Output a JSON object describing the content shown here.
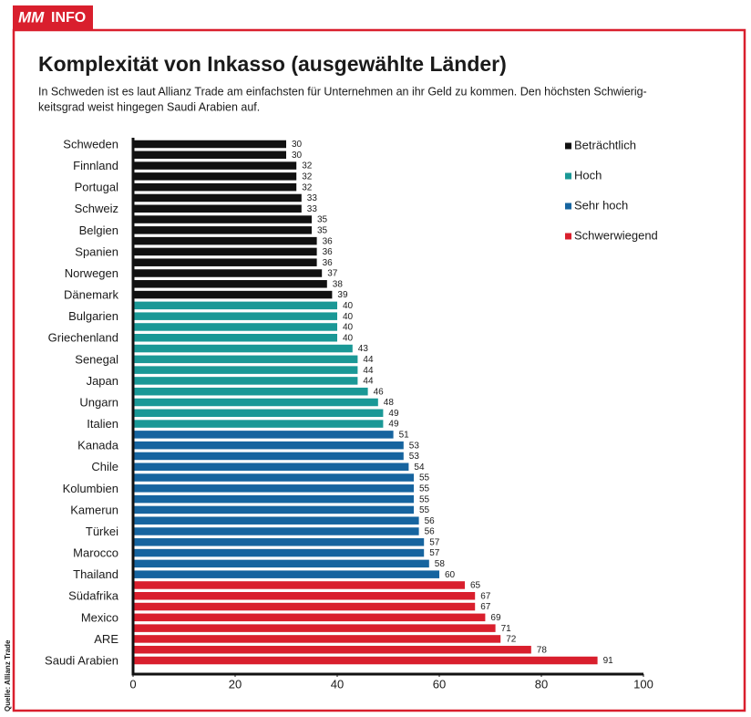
{
  "header": {
    "logo": "MM",
    "label": "INFO"
  },
  "chart_data": {
    "type": "bar",
    "orientation": "horizontal",
    "title": "Komplexität von Inkasso (ausgewählte Länder)",
    "subtitle": [
      "In Schweden ist es laut Allianz Trade am einfachsten für Unternehmen an ihr Geld zu kommen. Den höchsten Schwierig-",
      "keitsgrad weist hingegen Saudi Arabien auf."
    ],
    "source": "Quelle: Allianz Trade",
    "categories": [
      "Schweden",
      null,
      "Finnland",
      null,
      "Portugal",
      null,
      "Schweiz",
      null,
      "Belgien",
      null,
      "Spanien",
      null,
      "Norwegen",
      null,
      "Dänemark",
      null,
      "Bulgarien",
      null,
      "Griechenland",
      null,
      "Senegal",
      null,
      "Japan",
      null,
      "Ungarn",
      null,
      "Italien",
      null,
      "Kanada",
      null,
      "Chile",
      null,
      "Kolumbien",
      null,
      "Kamerun",
      null,
      "Türkei",
      null,
      "Marocco",
      null,
      "Thailand",
      null,
      "Südafrika",
      null,
      "Mexico",
      null,
      "ARE",
      null,
      "Saudi Arabien"
    ],
    "series": [
      {
        "name": "Beträchtlich",
        "color": "#111111",
        "values": [
          30,
          30,
          32,
          32,
          32,
          33,
          33,
          35,
          35,
          36,
          36,
          36,
          37,
          38,
          39,
          null,
          null,
          null,
          null,
          null,
          null,
          null,
          null,
          null,
          null,
          null,
          null,
          null,
          null,
          null,
          null,
          null,
          null,
          null,
          null,
          null,
          null,
          null,
          null,
          null,
          null,
          null,
          null,
          null,
          null,
          null,
          null,
          null,
          null
        ]
      },
      {
        "name": "Hoch",
        "color": "#1a9896",
        "values": [
          null,
          null,
          null,
          null,
          null,
          null,
          null,
          null,
          null,
          null,
          null,
          null,
          null,
          null,
          null,
          40,
          40,
          40,
          40,
          43,
          44,
          44,
          44,
          46,
          48,
          49,
          49,
          null,
          null,
          null,
          null,
          null,
          null,
          null,
          null,
          null,
          null,
          null,
          null,
          null,
          null,
          null,
          null,
          null,
          null,
          null,
          null,
          null,
          null
        ]
      },
      {
        "name": "Sehr hoch",
        "color": "#16649f",
        "values": [
          null,
          null,
          null,
          null,
          null,
          null,
          null,
          null,
          null,
          null,
          null,
          null,
          null,
          null,
          null,
          null,
          null,
          null,
          null,
          null,
          null,
          null,
          null,
          null,
          null,
          null,
          null,
          51,
          53,
          53,
          54,
          55,
          55,
          55,
          55,
          56,
          56,
          57,
          57,
          58,
          60,
          null,
          null,
          null,
          null,
          null,
          null,
          null,
          null
        ]
      },
      {
        "name": "Schwerwiegend",
        "color": "#d91f2d",
        "values": [
          null,
          null,
          null,
          null,
          null,
          null,
          null,
          null,
          null,
          null,
          null,
          null,
          null,
          null,
          null,
          null,
          null,
          null,
          null,
          null,
          null,
          null,
          null,
          null,
          null,
          null,
          null,
          null,
          null,
          null,
          null,
          null,
          null,
          null,
          null,
          null,
          null,
          null,
          null,
          null,
          null,
          65,
          67,
          67,
          69,
          71,
          72,
          78,
          91
        ]
      }
    ],
    "xlim": [
      0,
      100
    ],
    "xticks": [
      0,
      20,
      40,
      60,
      80,
      100
    ],
    "grid": false,
    "legend": "top-right"
  }
}
